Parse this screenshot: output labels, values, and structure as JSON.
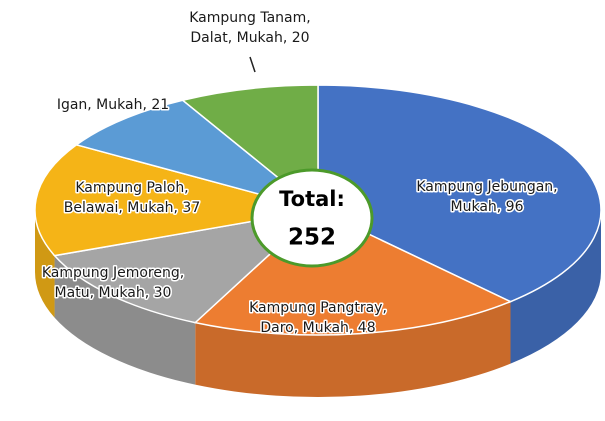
{
  "chart_data": {
    "type": "pie3d",
    "labels": [
      [
        "Kampung Jebungan,",
        "Mukah, 96"
      ],
      [
        "Kampung Pangtray,",
        "Daro, Mukah, 48"
      ],
      [
        "Kampung Jemoreng,",
        "Matu, Mukah, 30"
      ],
      [
        "Kampung Paloh,",
        "Belawai, Mukah, 37"
      ],
      [
        "Igan, Mukah, 21"
      ],
      [
        "Kampung Tanam,",
        "Dalat, Mukah, 20"
      ]
    ],
    "values": [
      96,
      48,
      30,
      37,
      21,
      20
    ],
    "colors": [
      "#4472c4",
      "#ed7d31",
      "#a5a5a5",
      "#f5b417",
      "#5b9bd5",
      "#70ad47"
    ],
    "center_title": "Total:",
    "total": 252
  }
}
